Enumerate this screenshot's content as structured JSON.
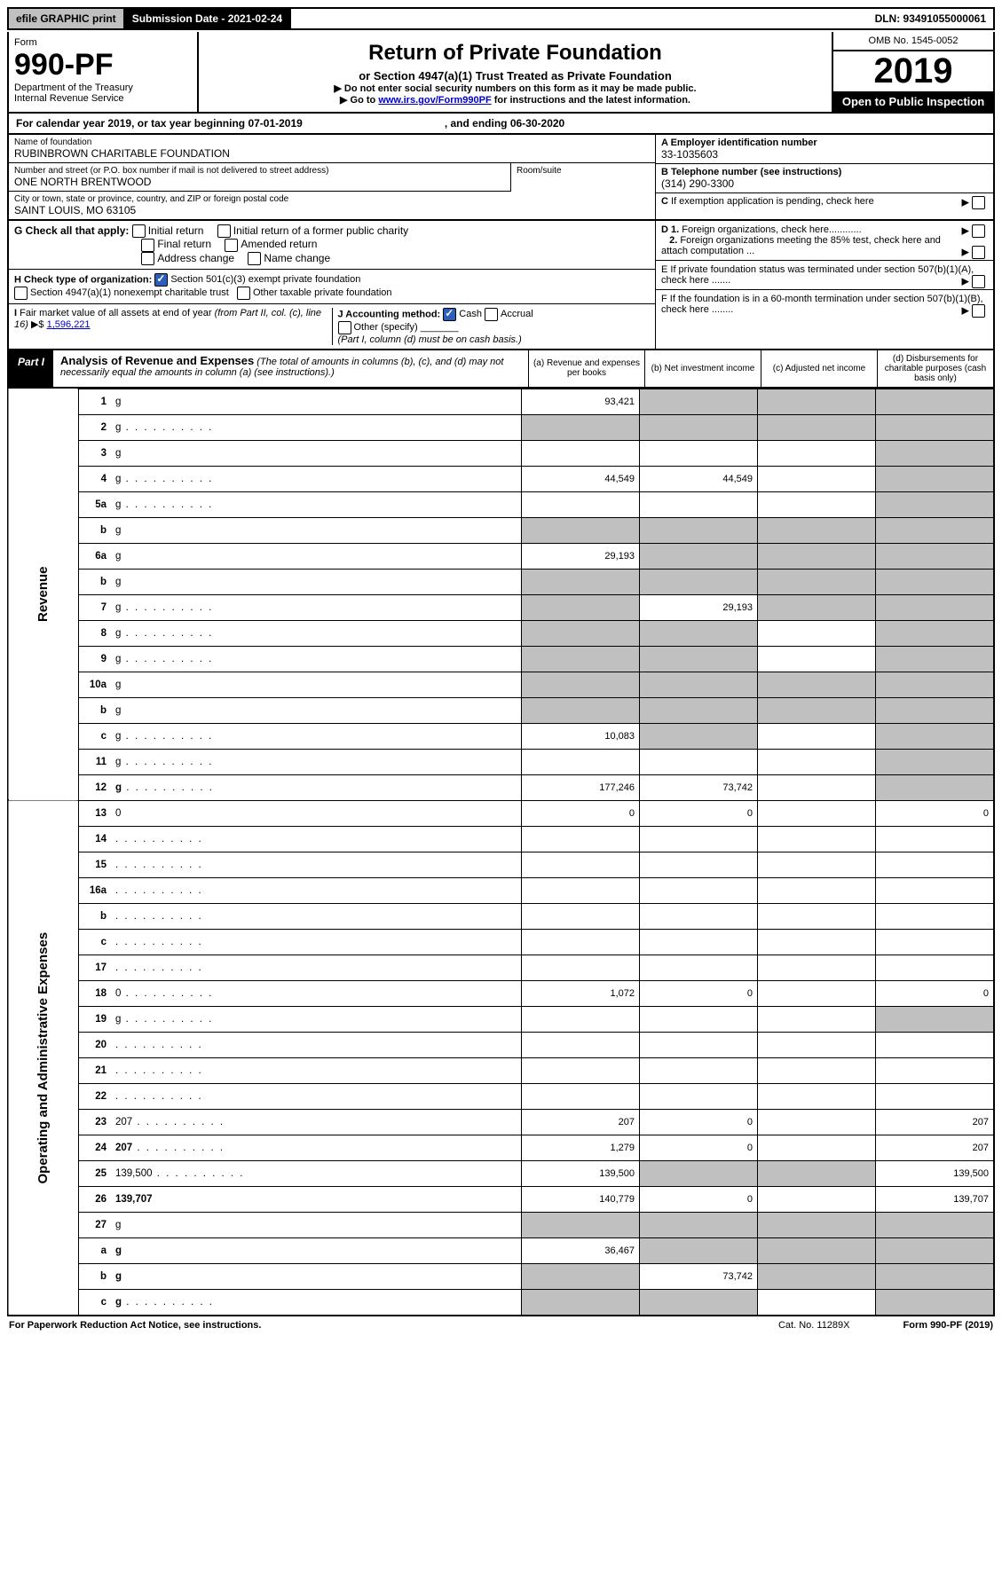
{
  "topbar": {
    "efile": "efile GRAPHIC print",
    "sub_label": "Submission Date - 2021-02-24",
    "dln": "DLN: 93491055000061"
  },
  "header": {
    "form_word": "Form",
    "form_no": "990-PF",
    "dept": "Department of the Treasury",
    "irs": "Internal Revenue Service",
    "title": "Return of Private Foundation",
    "subtitle": "or Section 4947(a)(1) Trust Treated as Private Foundation",
    "note1": "▶ Do not enter social security numbers on this form as it may be made public.",
    "note2_pre": "▶ Go to ",
    "note2_link": "www.irs.gov/Form990PF",
    "note2_post": " for instructions and the latest information.",
    "omb": "OMB No. 1545-0052",
    "year": "2019",
    "open": "Open to Public Inspection"
  },
  "calyear": {
    "pre": "For calendar year 2019, or tax year beginning 07-01-2019",
    "mid": ", and ending 06-30-2020"
  },
  "info": {
    "name_label": "Name of foundation",
    "name": "RUBINBROWN CHARITABLE FOUNDATION",
    "addr_label": "Number and street (or P.O. box number if mail is not delivered to street address)",
    "addr": "ONE NORTH BRENTWOOD",
    "room_label": "Room/suite",
    "city_label": "City or town, state or province, country, and ZIP or foreign postal code",
    "city": "SAINT LOUIS, MO  63105",
    "ein_label": "A Employer identification number",
    "ein": "33-1035603",
    "tel_label": "B Telephone number (see instructions)",
    "tel": "(314) 290-3300",
    "c_label": "C If exemption application is pending, check here",
    "d1": "D 1. Foreign organizations, check here............",
    "d2": "2. Foreign organizations meeting the 85% test, check here and attach computation ...",
    "e": "E  If private foundation status was terminated under section 507(b)(1)(A), check here .......",
    "f": "F  If the foundation is in a 60-month termination under section 507(b)(1)(B), check here ........"
  },
  "g": {
    "label": "G Check all that apply:",
    "opts": [
      "Initial return",
      "Initial return of a former public charity",
      "Final return",
      "Amended return",
      "Address change",
      "Name change"
    ]
  },
  "h": {
    "label": "H Check type of organization:",
    "opt1": "Section 501(c)(3) exempt private foundation",
    "opt2": "Section 4947(a)(1) nonexempt charitable trust",
    "opt3": "Other taxable private foundation"
  },
  "i": {
    "label": "I Fair market value of all assets at end of year (from Part II, col. (c), line 16)",
    "val": "1,596,221"
  },
  "j": {
    "label": "J Accounting method:",
    "cash": "Cash",
    "accrual": "Accrual",
    "other": "Other (specify)",
    "note": "(Part I, column (d) must be on cash basis.)"
  },
  "part1": {
    "label": "Part I",
    "title": "Analysis of Revenue and Expenses",
    "note": "(The total of amounts in columns (b), (c), and (d) may not necessarily equal the amounts in column (a) (see instructions).)",
    "cols": {
      "a": "(a) Revenue and expenses per books",
      "b": "(b) Net investment income",
      "c": "(c) Adjusted net income",
      "d": "(d) Disbursements for charitable purposes (cash basis only)"
    }
  },
  "sections": {
    "revenue": "Revenue",
    "expenses": "Operating and Administrative Expenses"
  },
  "rows": [
    {
      "n": "1",
      "d": "g",
      "a": "93,421",
      "b": "g",
      "c": "g"
    },
    {
      "n": "2",
      "d": "g",
      "dots": 1,
      "a": "g",
      "b": "g",
      "c": "g"
    },
    {
      "n": "3",
      "d": "g",
      "a": "",
      "b": "",
      "c": ""
    },
    {
      "n": "4",
      "d": "g",
      "dots": 1,
      "a": "44,549",
      "b": "44,549",
      "c": ""
    },
    {
      "n": "5a",
      "d": "g",
      "dots": 1,
      "a": "",
      "b": "",
      "c": ""
    },
    {
      "n": "b",
      "d": "g",
      "a": "g",
      "b": "g",
      "c": "g"
    },
    {
      "n": "6a",
      "d": "g",
      "a": "29,193",
      "b": "g",
      "c": "g"
    },
    {
      "n": "b",
      "d": "g",
      "a": "g",
      "b": "g",
      "c": "g"
    },
    {
      "n": "7",
      "d": "g",
      "dots": 1,
      "a": "g",
      "b": "29,193",
      "c": "g"
    },
    {
      "n": "8",
      "d": "g",
      "dots": 1,
      "a": "g",
      "b": "g",
      "c": ""
    },
    {
      "n": "9",
      "d": "g",
      "dots": 1,
      "a": "g",
      "b": "g",
      "c": ""
    },
    {
      "n": "10a",
      "d": "g",
      "a": "g",
      "b": "g",
      "c": "g"
    },
    {
      "n": "b",
      "d": "g",
      "a": "g",
      "b": "g",
      "c": "g"
    },
    {
      "n": "c",
      "d": "g",
      "dots": 1,
      "a": "10,083",
      "b": "g",
      "c": ""
    },
    {
      "n": "11",
      "d": "g",
      "dots": 1,
      "a": "",
      "b": "",
      "c": ""
    },
    {
      "n": "12",
      "d": "g",
      "dots": 1,
      "bold": 1,
      "a": "177,246",
      "b": "73,742",
      "c": ""
    },
    {
      "n": "13",
      "d": "0",
      "a": "0",
      "b": "0",
      "c": ""
    },
    {
      "n": "14",
      "d": "",
      "dots": 1,
      "a": "",
      "b": "",
      "c": ""
    },
    {
      "n": "15",
      "d": "",
      "dots": 1,
      "a": "",
      "b": "",
      "c": ""
    },
    {
      "n": "16a",
      "d": "",
      "dots": 1,
      "a": "",
      "b": "",
      "c": ""
    },
    {
      "n": "b",
      "d": "",
      "dots": 1,
      "a": "",
      "b": "",
      "c": ""
    },
    {
      "n": "c",
      "d": "",
      "dots": 1,
      "a": "",
      "b": "",
      "c": ""
    },
    {
      "n": "17",
      "d": "",
      "dots": 1,
      "a": "",
      "b": "",
      "c": ""
    },
    {
      "n": "18",
      "d": "0",
      "dots": 1,
      "a": "1,072",
      "b": "0",
      "c": ""
    },
    {
      "n": "19",
      "d": "g",
      "dots": 1,
      "a": "",
      "b": "",
      "c": ""
    },
    {
      "n": "20",
      "d": "",
      "dots": 1,
      "a": "",
      "b": "",
      "c": ""
    },
    {
      "n": "21",
      "d": "",
      "dots": 1,
      "a": "",
      "b": "",
      "c": ""
    },
    {
      "n": "22",
      "d": "",
      "dots": 1,
      "a": "",
      "b": "",
      "c": ""
    },
    {
      "n": "23",
      "d": "207",
      "dots": 1,
      "a": "207",
      "b": "0",
      "c": ""
    },
    {
      "n": "24",
      "d": "207",
      "dots": 1,
      "bold": 1,
      "a": "1,279",
      "b": "0",
      "c": ""
    },
    {
      "n": "25",
      "d": "139,500",
      "dots": 1,
      "a": "139,500",
      "b": "g",
      "c": "g"
    },
    {
      "n": "26",
      "d": "139,707",
      "bold": 1,
      "a": "140,779",
      "b": "0",
      "c": ""
    },
    {
      "n": "27",
      "d": "g",
      "a": "g",
      "b": "g",
      "c": "g"
    },
    {
      "n": "a",
      "d": "g",
      "bold": 1,
      "a": "36,467",
      "b": "g",
      "c": "g"
    },
    {
      "n": "b",
      "d": "g",
      "bold": 1,
      "a": "g",
      "b": "73,742",
      "c": "g"
    },
    {
      "n": "c",
      "d": "g",
      "dots": 1,
      "bold": 1,
      "a": "g",
      "b": "g",
      "c": ""
    }
  ],
  "footer": {
    "left": "For Paperwork Reduction Act Notice, see instructions.",
    "mid": "Cat. No. 11289X",
    "right": "Form 990-PF (2019)"
  }
}
